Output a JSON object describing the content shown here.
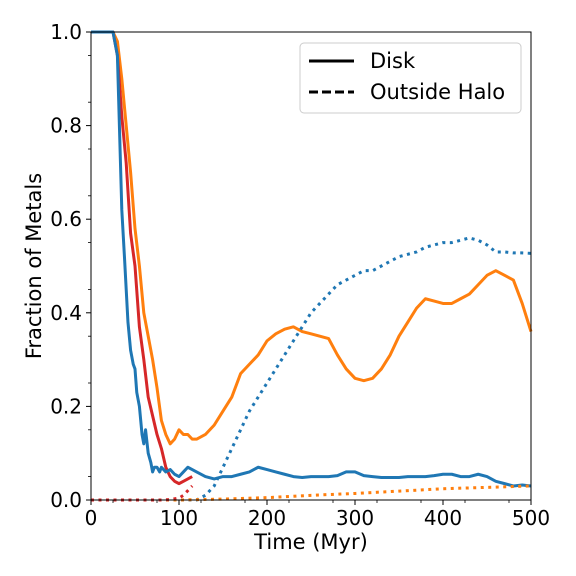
{
  "chart_data": {
    "type": "line",
    "xlabel": "Time (Myr)",
    "ylabel": "Fraction of Metals",
    "xlim": [
      0,
      500
    ],
    "ylim": [
      0,
      1.0
    ],
    "x_ticks": [
      "0",
      "100",
      "200",
      "300",
      "400",
      "500"
    ],
    "y_ticks": [
      "0.0",
      "0.2",
      "0.4",
      "0.6",
      "0.8",
      "1.0"
    ],
    "grid": false,
    "legend": {
      "placement": "top-right",
      "entries": [
        {
          "label": "Disk",
          "style": "solid"
        },
        {
          "label": "Outside Halo",
          "style": "dashed"
        }
      ]
    },
    "series": [
      {
        "color": "#ff7f0e",
        "style": "solid",
        "x": [
          0,
          25,
          30,
          35,
          40,
          45,
          50,
          55,
          60,
          65,
          70,
          75,
          80,
          85,
          90,
          95,
          100,
          105,
          110,
          115,
          120,
          130,
          140,
          150,
          160,
          170,
          180,
          190,
          200,
          210,
          220,
          230,
          240,
          250,
          260,
          270,
          280,
          290,
          300,
          310,
          320,
          330,
          340,
          350,
          360,
          370,
          380,
          390,
          400,
          410,
          420,
          430,
          440,
          450,
          460,
          470,
          480,
          490,
          500
        ],
        "y": [
          1.0,
          1.0,
          0.98,
          0.9,
          0.8,
          0.7,
          0.58,
          0.5,
          0.4,
          0.35,
          0.3,
          0.24,
          0.17,
          0.14,
          0.12,
          0.13,
          0.15,
          0.14,
          0.14,
          0.13,
          0.13,
          0.14,
          0.16,
          0.19,
          0.22,
          0.27,
          0.29,
          0.31,
          0.34,
          0.355,
          0.365,
          0.37,
          0.36,
          0.355,
          0.35,
          0.345,
          0.31,
          0.28,
          0.26,
          0.255,
          0.26,
          0.28,
          0.31,
          0.35,
          0.38,
          0.41,
          0.43,
          0.425,
          0.42,
          0.42,
          0.43,
          0.44,
          0.46,
          0.48,
          0.49,
          0.48,
          0.47,
          0.42,
          0.36
        ]
      },
      {
        "color": "#d62728",
        "style": "solid",
        "x": [
          0,
          25,
          30,
          35,
          40,
          45,
          50,
          55,
          60,
          65,
          70,
          75,
          80,
          85,
          90,
          95,
          100,
          105,
          110,
          115
        ],
        "y": [
          1.0,
          1.0,
          0.95,
          0.82,
          0.72,
          0.57,
          0.5,
          0.37,
          0.3,
          0.22,
          0.18,
          0.14,
          0.11,
          0.07,
          0.05,
          0.04,
          0.035,
          0.04,
          0.045,
          0.05
        ]
      },
      {
        "color": "#1f77b4",
        "style": "solid",
        "x": [
          0,
          25,
          30,
          35,
          38,
          40,
          42,
          45,
          48,
          50,
          52,
          55,
          58,
          60,
          62,
          65,
          68,
          70,
          72,
          75,
          78,
          80,
          85,
          90,
          95,
          100,
          105,
          110,
          115,
          120,
          130,
          140,
          150,
          160,
          170,
          180,
          190,
          200,
          210,
          220,
          230,
          240,
          250,
          260,
          270,
          280,
          290,
          300,
          310,
          320,
          330,
          340,
          350,
          360,
          370,
          380,
          390,
          400,
          410,
          420,
          430,
          440,
          450,
          460,
          470,
          480,
          490,
          500
        ],
        "y": [
          1.0,
          1.0,
          0.95,
          0.62,
          0.52,
          0.45,
          0.38,
          0.32,
          0.29,
          0.28,
          0.23,
          0.2,
          0.14,
          0.12,
          0.15,
          0.1,
          0.08,
          0.06,
          0.07,
          0.07,
          0.06,
          0.07,
          0.06,
          0.065,
          0.055,
          0.05,
          0.06,
          0.07,
          0.065,
          0.06,
          0.05,
          0.045,
          0.05,
          0.05,
          0.055,
          0.06,
          0.07,
          0.065,
          0.06,
          0.055,
          0.05,
          0.048,
          0.05,
          0.05,
          0.05,
          0.052,
          0.06,
          0.06,
          0.052,
          0.05,
          0.048,
          0.048,
          0.048,
          0.05,
          0.05,
          0.05,
          0.052,
          0.055,
          0.055,
          0.05,
          0.05,
          0.055,
          0.05,
          0.04,
          0.035,
          0.03,
          0.032,
          0.03
        ]
      },
      {
        "color": "#1f77b4",
        "style": "dotted",
        "x": [
          0,
          100,
          110,
          120,
          130,
          140,
          150,
          160,
          170,
          180,
          190,
          200,
          210,
          220,
          230,
          240,
          250,
          260,
          270,
          280,
          290,
          300,
          310,
          320,
          330,
          340,
          350,
          360,
          370,
          380,
          390,
          400,
          410,
          420,
          430,
          440,
          450,
          460,
          470,
          480,
          490,
          500
        ],
        "y": [
          0.0,
          0.0,
          0.0,
          0.0,
          0.01,
          0.03,
          0.07,
          0.11,
          0.15,
          0.19,
          0.22,
          0.25,
          0.28,
          0.31,
          0.34,
          0.37,
          0.4,
          0.42,
          0.44,
          0.46,
          0.47,
          0.48,
          0.49,
          0.49,
          0.5,
          0.51,
          0.52,
          0.525,
          0.53,
          0.54,
          0.545,
          0.55,
          0.55,
          0.555,
          0.56,
          0.555,
          0.545,
          0.53,
          0.53,
          0.528,
          0.528,
          0.527
        ]
      },
      {
        "color": "#ff7f0e",
        "style": "dotted",
        "x": [
          0,
          100,
          150,
          200,
          250,
          300,
          350,
          400,
          450,
          500
        ],
        "y": [
          0.0,
          0.0,
          0.002,
          0.005,
          0.01,
          0.014,
          0.019,
          0.024,
          0.027,
          0.03
        ]
      },
      {
        "color": "#d62728",
        "style": "dotted",
        "x": [
          0,
          80,
          90,
          100,
          105,
          110,
          115
        ],
        "y": [
          0.0,
          0.0,
          0.001,
          0.004,
          0.01,
          0.02,
          0.03
        ]
      }
    ]
  }
}
